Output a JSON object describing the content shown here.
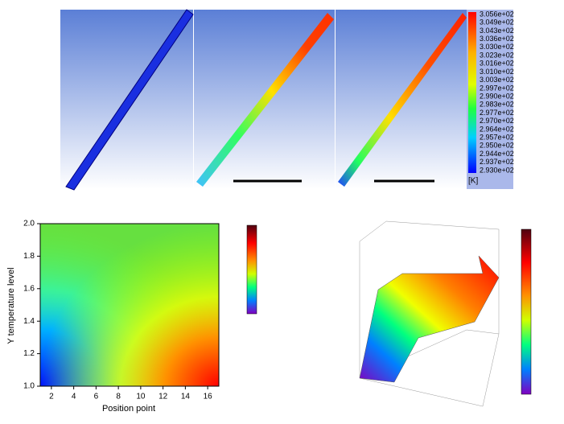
{
  "simulation": {
    "colorbar_labels": [
      "3.056e+02",
      "3.049e+02",
      "3.043e+02",
      "3.036e+02",
      "3.030e+02",
      "3.023e+02",
      "3.016e+02",
      "3.010e+02",
      "3.003e+02",
      "2.997e+02",
      "2.990e+02",
      "2.983e+02",
      "2.977e+02",
      "2.970e+02",
      "2.964e+02",
      "2.957e+02",
      "2.950e+02",
      "2.944e+02",
      "2.937e+02",
      "2.930e+02"
    ],
    "unit": "[K]"
  },
  "chart_data": {
    "type": "contour",
    "xlabel": "Position point",
    "ylabel": "Y temperature level",
    "xlim": [
      1,
      17
    ],
    "ylim": [
      1,
      2
    ],
    "xticks": [
      2,
      4,
      6,
      8,
      10,
      12,
      14,
      16
    ],
    "yticks": [
      {
        "value": 1,
        "label": "1.0"
      },
      {
        "value": 1.2,
        "label": "1.2"
      },
      {
        "value": 1.4,
        "label": "1.4"
      },
      {
        "value": 1.6,
        "label": "1.6"
      },
      {
        "value": 1.8,
        "label": "1.8"
      },
      {
        "value": 2,
        "label": "2.0"
      }
    ]
  }
}
